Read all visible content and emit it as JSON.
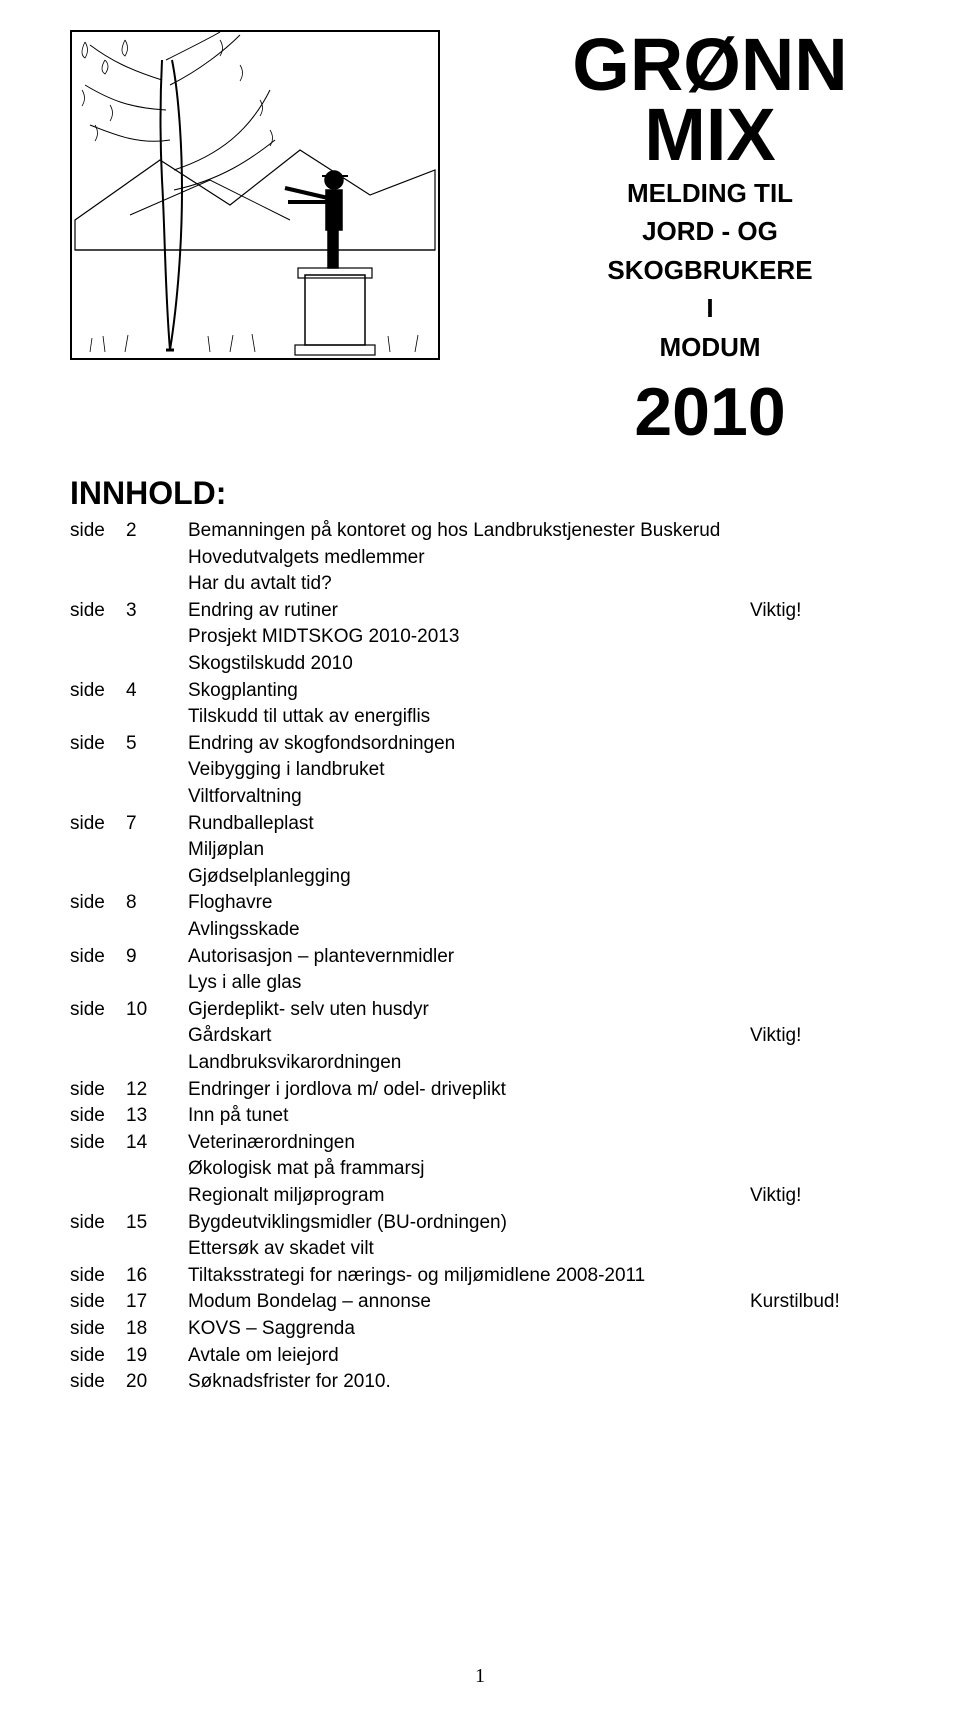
{
  "title_line1": "GRØNN",
  "title_line2": "MIX",
  "subtitle_line1": "MELDING TIL",
  "subtitle_line2": "JORD - OG",
  "subtitle_line3": "SKOGBRUKERE",
  "subtitle_line4": "I",
  "subtitle_line5": "MODUM",
  "year": "2010",
  "innhold_label": "INNHOLD:",
  "side_label": "side",
  "page_number": "1",
  "colors": {
    "background": "#ffffff",
    "text": "#000000"
  },
  "typography": {
    "title_font": "Arial Black / Impact",
    "title_size_pt": 56,
    "body_font": "Comic Sans MS",
    "body_size_pt": 14,
    "toc_heading_size_pt": 24
  },
  "illustration": {
    "description": "Line drawing: person on a pedestal facing left toward a birch tree, mountains in background, grass foreground, rectangular border",
    "style": "black ink line art on white",
    "border_color": "#000000"
  },
  "toc": [
    {
      "side": "side",
      "num": "2",
      "text": "Bemanningen på kontoret og hos Landbrukstjenester Buskerud",
      "note": ""
    },
    {
      "side": "",
      "num": "",
      "text": "Hovedutvalgets medlemmer",
      "note": ""
    },
    {
      "side": "",
      "num": "",
      "text": "Har du avtalt tid?",
      "note": ""
    },
    {
      "side": "side",
      "num": "3",
      "text": "Endring av rutiner",
      "note": "Viktig!"
    },
    {
      "side": "",
      "num": "",
      "text": "Prosjekt MIDTSKOG 2010-2013",
      "note": ""
    },
    {
      "side": "",
      "num": "",
      "text": "Skogstilskudd 2010",
      "note": ""
    },
    {
      "side": "side",
      "num": "4",
      "text": "Skogplanting",
      "note": ""
    },
    {
      "side": "",
      "num": "",
      "text": "Tilskudd til uttak av energiflis",
      "note": ""
    },
    {
      "side": "side",
      "num": "5",
      "text": "Endring av skogfondsordningen",
      "note": ""
    },
    {
      "side": "",
      "num": "",
      "text": "Veibygging i landbruket",
      "note": ""
    },
    {
      "side": "",
      "num": "",
      "text": "Viltforvaltning",
      "note": ""
    },
    {
      "side": "side",
      "num": "7",
      "text": "Rundballeplast",
      "note": ""
    },
    {
      "side": "",
      "num": "",
      "text": "Miljøplan",
      "note": ""
    },
    {
      "side": "",
      "num": "",
      "text": "Gjødselplanlegging",
      "note": ""
    },
    {
      "side": "side",
      "num": "8",
      "text": "Floghavre",
      "note": ""
    },
    {
      "side": "",
      "num": "",
      "text": "Avlingsskade",
      "note": ""
    },
    {
      "side": "side",
      "num": "9",
      "text": "Autorisasjon – plantevernmidler",
      "note": ""
    },
    {
      "side": "",
      "num": "",
      "text": "Lys i alle glas",
      "note": ""
    },
    {
      "side": "side",
      "num": "10",
      "text": "Gjerdeplikt- selv uten husdyr",
      "note": ""
    },
    {
      "side": "",
      "num": "",
      "text": "Gårdskart",
      "note": "Viktig!"
    },
    {
      "side": "",
      "num": "",
      "text": "Landbruksvikarordningen",
      "note": ""
    },
    {
      "side": "side",
      "num": "12",
      "text": "Endringer i jordlova m/ odel- driveplikt",
      "note": ""
    },
    {
      "side": "side",
      "num": "13",
      "text": "Inn på tunet",
      "note": ""
    },
    {
      "side": "side",
      "num": "14",
      "text": "Veterinærordningen",
      "note": ""
    },
    {
      "side": "",
      "num": "",
      "text": "Økologisk mat på frammarsj",
      "note": ""
    },
    {
      "side": "",
      "num": "",
      "text": "Regionalt miljøprogram",
      "note": "Viktig!"
    },
    {
      "side": "side",
      "num": "15",
      "text": "Bygdeutviklingsmidler (BU-ordningen)",
      "note": ""
    },
    {
      "side": "",
      "num": "",
      "text": "Ettersøk av skadet vilt",
      "note": ""
    },
    {
      "side": "side",
      "num": "16",
      "text": "Tiltaksstrategi for nærings- og miljømidlene 2008-2011",
      "note": ""
    },
    {
      "side": "side",
      "num": "17",
      "text": "Modum Bondelag – annonse",
      "note": "Kurstilbud!"
    },
    {
      "side": "side",
      "num": "18",
      "text": "KOVS – Saggrenda",
      "note": ""
    },
    {
      "side": "side",
      "num": "19",
      "text": "Avtale om leiejord",
      "note": ""
    },
    {
      "side": "side",
      "num": "20",
      "text": "Søknadsfrister for 2010.",
      "note": ""
    }
  ]
}
